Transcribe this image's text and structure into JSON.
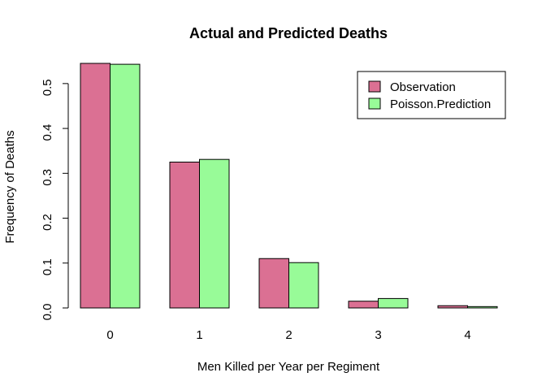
{
  "chart_data": {
    "type": "bar",
    "title": "Actual and Predicted Deaths",
    "xlabel": "Men Killed per Year per Regiment",
    "ylabel": "Frequency of Deaths",
    "categories": [
      "0",
      "1",
      "2",
      "3",
      "4"
    ],
    "series": [
      {
        "name": "Observation",
        "color": "#DB7093",
        "values": [
          0.545,
          0.325,
          0.11,
          0.015,
          0.005
        ]
      },
      {
        "name": "Poisson.Prediction",
        "color": "#98FB98",
        "values": [
          0.543,
          0.331,
          0.101,
          0.021,
          0.003
        ]
      }
    ],
    "ylim": [
      0,
      0.545
    ],
    "yticks": [
      0.0,
      0.1,
      0.2,
      0.3,
      0.4,
      0.5
    ],
    "ytick_labels": [
      "0.0",
      "0.1",
      "0.2",
      "0.3",
      "0.4",
      "0.5"
    ],
    "legend_position": "top-right",
    "grid": false
  }
}
